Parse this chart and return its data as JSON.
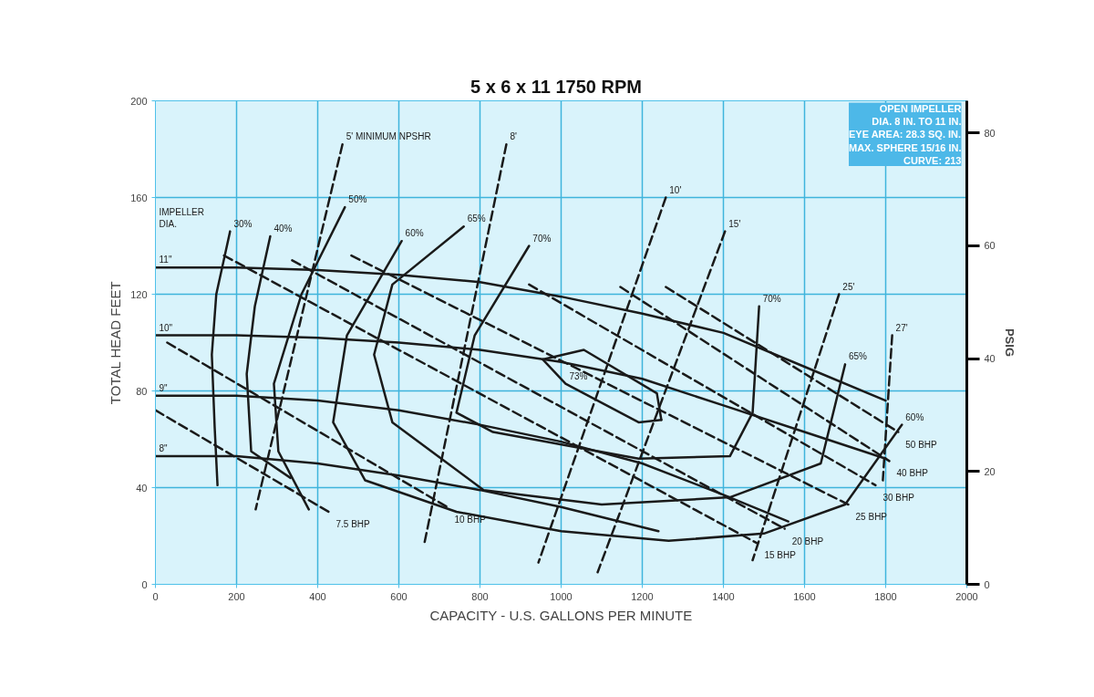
{
  "chart_data": {
    "type": "line",
    "title": "5 x 6 x 11   1750 RPM",
    "xlabel": "CAPACITY - U.S. GALLONS PER MINUTE",
    "ylabel": "TOTAL HEAD FEET",
    "y2label": "PSIG",
    "xlim": [
      0,
      2000
    ],
    "xticks": [
      0,
      200,
      400,
      600,
      800,
      1000,
      1200,
      1400,
      1600,
      1800,
      2000
    ],
    "ylim": [
      0,
      200
    ],
    "yticks": [
      0,
      40,
      80,
      120,
      160,
      200
    ],
    "y2lim": [
      0,
      85.7
    ],
    "y2ticks": [
      0,
      20,
      40,
      60,
      80
    ],
    "grid": true,
    "marker": "none",
    "series": [
      {
        "color": "#1a1a1a",
        "line_style": "solid",
        "x": [
          0,
          200,
          400,
          600,
          800,
          1000,
          1200,
          1400,
          1600,
          1800
        ],
        "values": [
          131,
          131,
          130,
          128,
          125,
          119,
          112,
          104,
          90,
          76
        ]
      },
      {
        "color": "#1a1a1a",
        "line_style": "solid",
        "x": [
          0,
          200,
          400,
          600,
          800,
          1000,
          1200,
          1400,
          1600,
          1800
        ],
        "values": [
          103,
          103,
          102,
          100,
          97,
          92,
          85,
          74,
          63,
          52
        ]
      },
      {
        "color": "#1a1a1a",
        "line_style": "solid",
        "x": [
          0,
          200,
          400,
          600,
          800,
          1000,
          1200,
          1400,
          1560
        ],
        "values": [
          78,
          78,
          76,
          72,
          66,
          59,
          50,
          37,
          26
        ]
      },
      {
        "color": "#1a1a1a",
        "line_style": "solid",
        "x": [
          0,
          200,
          400,
          600,
          800,
          1000,
          1240
        ],
        "values": [
          53,
          53,
          50,
          45,
          39,
          32,
          22
        ]
      },
      {
        "color": "#1a1a1a",
        "line_style": "solid",
        "x": [
          184,
          150,
          139,
          146,
          153
        ],
        "values": [
          146,
          120,
          95,
          65,
          41
        ]
      },
      {
        "color": "#1a1a1a",
        "line_style": "solid",
        "x": [
          283,
          245,
          225,
          236,
          333
        ],
        "values": [
          144,
          115,
          87,
          55,
          44
        ]
      },
      {
        "color": "#1a1a1a",
        "line_style": "solid",
        "x": [
          467,
          360,
          292,
          303,
          378
        ],
        "values": [
          156,
          120,
          83,
          55,
          31
        ]
      },
      {
        "color": "#1a1a1a",
        "line_style": "solid",
        "x": [
          607,
          472,
          438,
          517,
          742,
          1000,
          1265,
          1500,
          1700,
          1840
        ],
        "values": [
          142,
          103,
          67,
          43,
          30,
          22,
          18,
          21,
          33,
          66
        ]
      },
      {
        "color": "#1a1a1a",
        "line_style": "solid",
        "x": [
          760,
          584,
          539,
          584,
          809,
          1100,
          1416,
          1640,
          1700
        ],
        "values": [
          148,
          124,
          95,
          67,
          39,
          33,
          36,
          50,
          91
        ]
      },
      {
        "color": "#1a1a1a",
        "line_style": "solid",
        "x": [
          921,
          787,
          742,
          832,
          1191,
          1416,
          1472,
          1488
        ],
        "values": [
          140,
          103,
          71,
          63,
          52,
          53,
          71,
          115
        ]
      },
      {
        "color": "#1a1a1a",
        "line_style": "solid",
        "x": [
          955,
          1056,
          1236,
          1247
        ],
        "values": [
          93,
          97,
          79,
          68
        ]
      },
      {
        "color": "#1a1a1a",
        "line_style": "solid",
        "x": [
          955,
          1011,
          1191,
          1247
        ],
        "values": [
          93,
          83,
          67,
          68
        ]
      },
      {
        "color": "#1a1a1a",
        "line_style": "dashed",
        "x": [
          0,
          427
        ],
        "values": [
          72,
          30
        ]
      },
      {
        "color": "#1a1a1a",
        "line_style": "dashed",
        "x": [
          29,
          719
        ],
        "values": [
          100,
          32
        ]
      },
      {
        "color": "#1a1a1a",
        "line_style": "dashed",
        "x": [
          169,
          1483
        ],
        "values": [
          136,
          17
        ]
      },
      {
        "color": "#1a1a1a",
        "line_style": "dashed",
        "x": [
          337,
          1551
        ],
        "values": [
          134,
          23
        ]
      },
      {
        "color": "#1a1a1a",
        "line_style": "dashed",
        "x": [
          483,
          1708
        ],
        "values": [
          136,
          33
        ]
      },
      {
        "color": "#1a1a1a",
        "line_style": "dashed",
        "x": [
          921,
          1775
        ],
        "values": [
          124,
          41
        ]
      },
      {
        "color": "#1a1a1a",
        "line_style": "dashed",
        "x": [
          1146,
          1809
        ],
        "values": [
          123,
          51
        ]
      },
      {
        "color": "#1a1a1a",
        "line_style": "dashed",
        "x": [
          1258,
          1831
        ],
        "values": [
          123,
          63
        ]
      },
      {
        "color": "#1a1a1a",
        "line_style": "dashed",
        "x": [
          461,
          247
        ],
        "values": [
          182,
          31
        ]
      },
      {
        "color": "#1a1a1a",
        "line_style": "dashed",
        "x": [
          865,
          663
        ],
        "values": [
          182,
          17
        ]
      },
      {
        "color": "#1a1a1a",
        "line_style": "dashed",
        "x": [
          1258,
          944
        ],
        "values": [
          160,
          9
        ]
      },
      {
        "color": "#1a1a1a",
        "line_style": "dashed",
        "x": [
          1404,
          1090
        ],
        "values": [
          146,
          5
        ]
      },
      {
        "color": "#1a1a1a",
        "line_style": "dashed",
        "x": [
          1685,
          1472
        ],
        "values": [
          120,
          10
        ]
      },
      {
        "color": "#1a1a1a",
        "line_style": "dashed",
        "x": [
          1816,
          1793
        ],
        "values": [
          103,
          43
        ]
      }
    ],
    "annotations": [
      "OPEN IMPELLER\nDIA. 8 IN. TO 11 IN.\nEYE AREA: 28.3 SQ. IN.\nMAX. SPHERE 15/16 IN.\nCURVE: 213",
      "IMPELLER\nDIA.",
      {
        "text": "11\"",
        "x": 0,
        "y": 131
      },
      {
        "text": "10\"",
        "x": 0,
        "y": 103
      },
      {
        "text": "9\"",
        "x": 0,
        "y": 78
      },
      {
        "text": "8\"",
        "x": 0,
        "y": 53
      },
      {
        "text": "30%",
        "x": 184,
        "y": 146
      },
      {
        "text": "40%",
        "x": 283,
        "y": 144
      },
      {
        "text": "50%",
        "x": 467,
        "y": 156
      },
      {
        "text": "60%",
        "x": 607,
        "y": 142
      },
      {
        "text": "65%",
        "x": 760,
        "y": 148
      },
      {
        "text": "70%",
        "x": 921,
        "y": 140
      },
      {
        "text": "73%",
        "x": 1011,
        "y": 83
      },
      {
        "text": "70%",
        "x": 1488,
        "y": 115
      },
      {
        "text": "65%",
        "x": 1700,
        "y": 91
      },
      {
        "text": "60%",
        "x": 1840,
        "y": 66
      },
      {
        "text": "5' MINIMUM NPSHR",
        "x": 461,
        "y": 182
      },
      {
        "text": "8'",
        "x": 865,
        "y": 182
      },
      {
        "text": "10'",
        "x": 1258,
        "y": 160
      },
      {
        "text": "15'",
        "x": 1404,
        "y": 146
      },
      {
        "text": "25'",
        "x": 1685,
        "y": 120
      },
      {
        "text": "27'",
        "x": 1816,
        "y": 103
      },
      {
        "text": "7.5 BHP",
        "x": 427,
        "y": 30
      },
      {
        "text": "10 BHP",
        "x": 719,
        "y": 32
      },
      {
        "text": "15 BHP",
        "x": 1483,
        "y": 17
      },
      {
        "text": "20 BHP",
        "x": 1551,
        "y": 23
      },
      {
        "text": "25 BHP",
        "x": 1708,
        "y": 33
      },
      {
        "text": "30 BHP",
        "x": 1775,
        "y": 41
      },
      {
        "text": "40 BHP",
        "x": 1809,
        "y": 51
      },
      {
        "text": "50 BHP",
        "x": 1831,
        "y": 63
      }
    ]
  }
}
